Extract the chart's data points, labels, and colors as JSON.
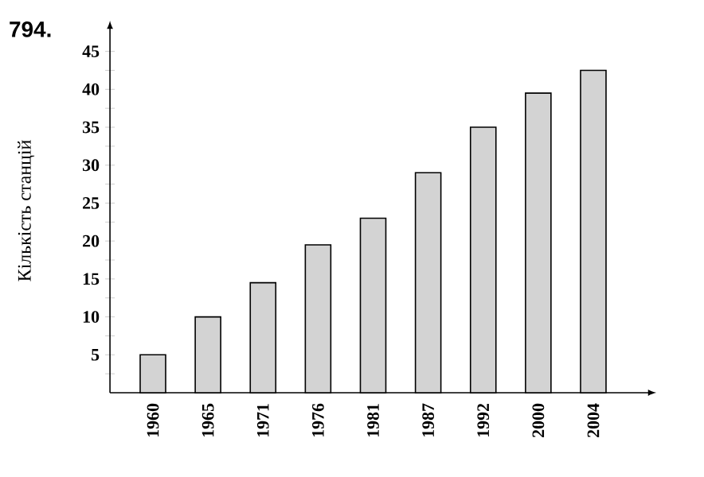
{
  "chart_data": {
    "type": "bar",
    "ylabel": "Кількість станцій",
    "annotations": [
      "794."
    ],
    "categories": [
      "1960",
      "1965",
      "1971",
      "1976",
      "1981",
      "1987",
      "1992",
      "2000",
      "2004"
    ],
    "values": [
      5,
      10,
      14.5,
      19.5,
      23,
      29,
      35,
      39.5,
      42.5
    ],
    "color": "#d3d3d3",
    "ylim": [
      0,
      48
    ],
    "yticks": [
      {
        "value": 2.5,
        "label": null
      },
      5,
      {
        "value": 7.5,
        "label": null
      },
      10,
      {
        "value": 12.5,
        "label": null
      },
      15,
      {
        "value": 17.5,
        "label": null
      },
      20,
      {
        "value": 22.5,
        "label": null
      },
      25,
      {
        "value": 27.5,
        "label": null
      },
      30,
      {
        "value": 32.5,
        "label": null
      },
      35,
      {
        "value": 37.5,
        "label": null
      },
      40,
      {
        "value": 42.5,
        "label": null
      },
      45
    ]
  }
}
